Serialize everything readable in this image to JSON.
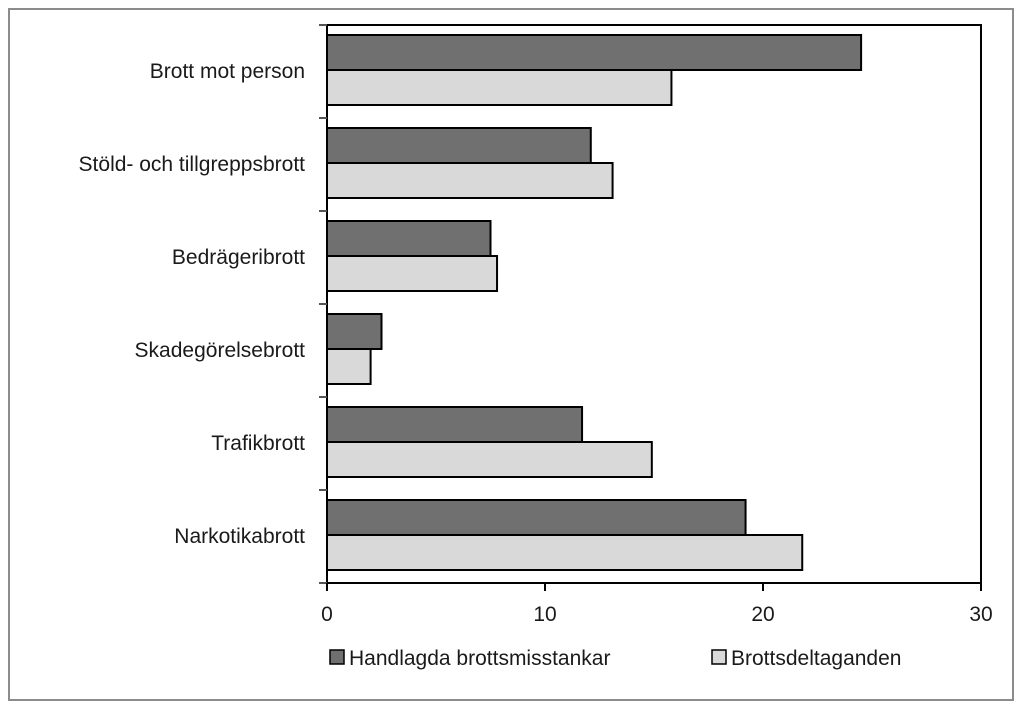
{
  "chart_data": {
    "type": "bar",
    "orientation": "horizontal",
    "categories": [
      "Brott mot person",
      "Stöld- och tillgreppsbrott",
      "Bedrägeribrott",
      "Skadegörelsebrott",
      "Trafikbrott",
      "Narkotikabrott"
    ],
    "series": [
      {
        "name": "Handlagda brottsmisstankar",
        "color": "#707070",
        "values": [
          24.5,
          12.1,
          7.5,
          2.5,
          11.7,
          19.2
        ]
      },
      {
        "name": "Brottsdeltaganden",
        "color": "#d9d9d9",
        "values": [
          15.8,
          13.1,
          7.8,
          2.0,
          14.9,
          21.8
        ]
      }
    ],
    "xlim": [
      0,
      30
    ],
    "xticks": [
      "0",
      "10",
      "20",
      "30"
    ],
    "grid": false,
    "legend_position": "bottom"
  }
}
